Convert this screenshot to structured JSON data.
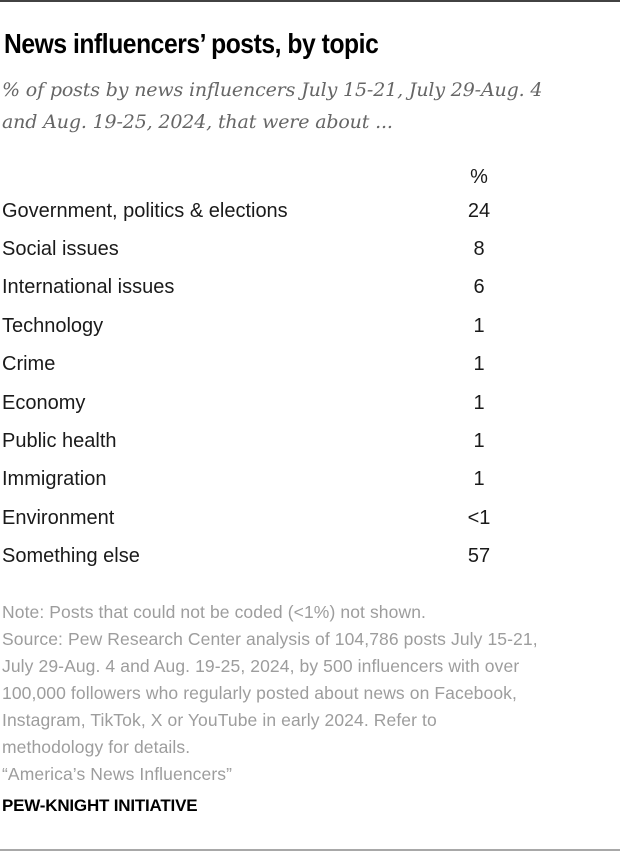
{
  "chart_data": {
    "type": "table",
    "title": "News influencers’ posts, by topic",
    "subtitle": "% of posts by news influencers July 15-21, July 29-Aug. 4\nand Aug. 19-25, 2024, that were about ...",
    "value_column_header": "%",
    "categories": [
      "Government, politics & elections",
      "Social issues",
      "International issues",
      "Technology",
      "Crime",
      "Economy",
      "Public health",
      "Immigration",
      "Environment",
      "Something else"
    ],
    "values": [
      "24",
      "8",
      "6",
      "1",
      "1",
      "1",
      "1",
      "1",
      "<1",
      "57"
    ],
    "layout": {
      "value_column_align": "center",
      "grid": "off",
      "legend": "none"
    }
  },
  "footer": {
    "note": "Note: Posts that could not be coded (<1%) not shown.",
    "source": "Source: Pew Research Center analysis of 104,786 posts July 15-21,\nJuly 29-Aug. 4 and Aug. 19-25, 2024, by 500 influencers with over\n100,000 followers who regularly posted about news on Facebook,\nInstagram, TikTok, X or YouTube in early 2024. Refer to\nmethodology for details.",
    "report_quote": "“America’s News Influencers”",
    "brand": "PEW-KNIGHT INITIATIVE"
  },
  "colors": {
    "title_text": "#000000",
    "subtitle_text": "#666666",
    "table_text": "#1a1a1a",
    "note_text": "#9d9d9d",
    "top_rule": "#424242",
    "bottom_rule": "#a8a8a8",
    "background": "#ffffff"
  }
}
